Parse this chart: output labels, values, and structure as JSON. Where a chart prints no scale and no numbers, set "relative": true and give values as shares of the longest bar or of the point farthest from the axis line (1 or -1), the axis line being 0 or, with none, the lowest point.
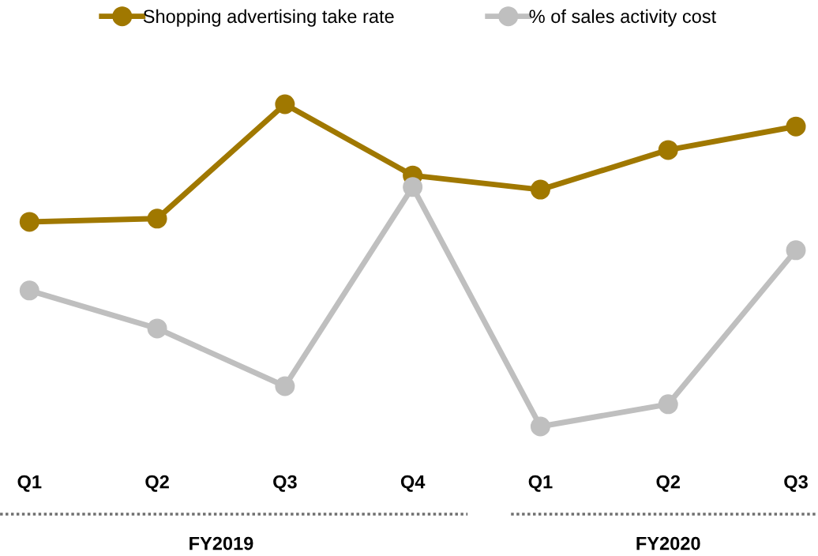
{
  "chart_data": {
    "type": "line",
    "relative": true,
    "categories": [
      "Q1",
      "Q2",
      "Q3",
      "Q4",
      "Q1",
      "Q2",
      "Q3"
    ],
    "series": [
      {
        "name": "Shopping advertising take rate",
        "color": "#a07800",
        "values": [
          0.635,
          0.645,
          1,
          0.779,
          0.735,
          0.858,
          0.931
        ]
      },
      {
        "name": "% of sales activity cost",
        "color": "#bfbfbf",
        "values": [
          0.422,
          0.304,
          0.125,
          0.743,
          0,
          0.069,
          0.547
        ]
      }
    ],
    "annotations": [
      "FY2019",
      "FY2020"
    ],
    "marker": "circle",
    "line_style": "solid",
    "legend": "top",
    "grid": false
  }
}
